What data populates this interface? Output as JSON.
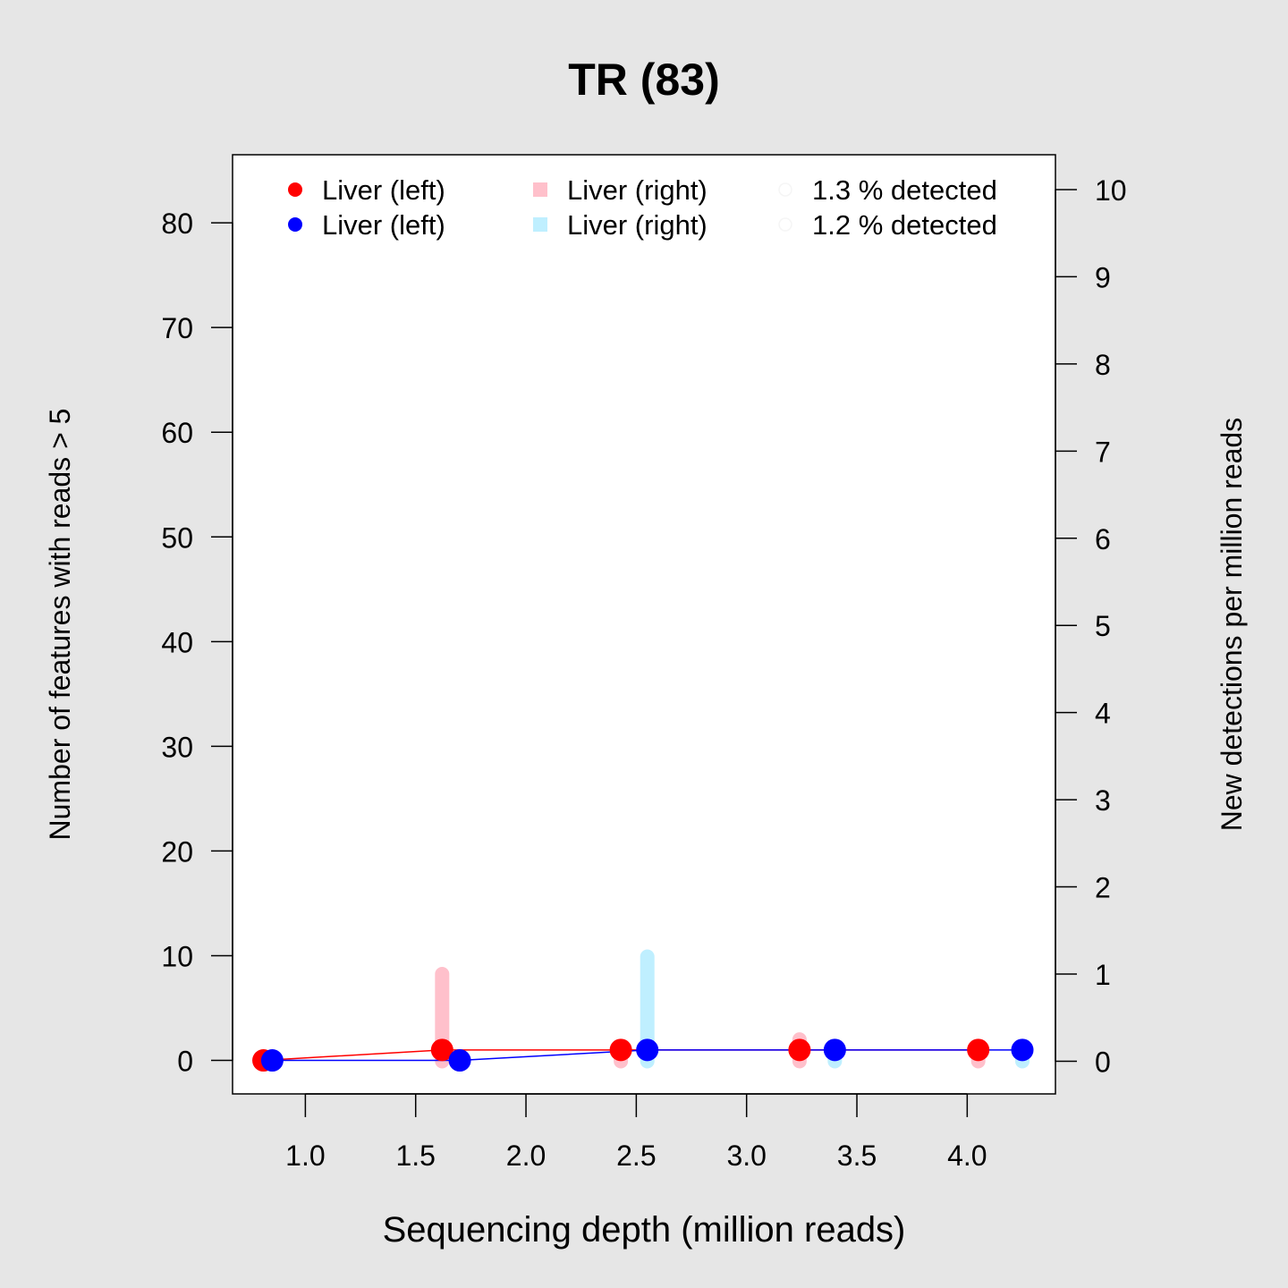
{
  "chart_data": {
    "type": "line",
    "title": "TR (83)",
    "xlabel": "Sequencing depth (million reads)",
    "ylabel": "Number of features with reads > 5",
    "y2label": "New detections per million reads",
    "xlim": [
      0.67,
      4.4
    ],
    "ylim": [
      -3.2,
      86.5
    ],
    "y2lim": [
      -0.375,
      10.4
    ],
    "x_ticks": [
      "1.0",
      "1.5",
      "2.0",
      "2.5",
      "3.0",
      "3.5",
      "4.0"
    ],
    "y_ticks": [
      "0",
      "10",
      "20",
      "30",
      "40",
      "50",
      "60",
      "70",
      "80"
    ],
    "y2_ticks": [
      "0",
      "1",
      "2",
      "3",
      "4",
      "5",
      "6",
      "7",
      "8",
      "9",
      "10"
    ],
    "grid": false,
    "legend_position": "top",
    "legend": [
      {
        "label": "Liver (left)",
        "color": "#ff0000",
        "symbol": "circle"
      },
      {
        "label": "Liver (left)",
        "color": "#0000ff",
        "symbol": "circle"
      },
      {
        "label": "Liver (right)",
        "color": "#ffc0cb",
        "symbol": "square"
      },
      {
        "label": "Liver (right)",
        "color": "#bfefff",
        "symbol": "square"
      },
      {
        "label": "1.3 % detected",
        "color": "#f5f5f5",
        "symbol": "open-circle"
      },
      {
        "label": "1.2 % detected",
        "color": "#f5f5f5",
        "symbol": "open-circle"
      }
    ],
    "series": [
      {
        "color": "#ff0000",
        "bar_color": "#ffc0cb",
        "x": [
          0.81,
          1.62,
          2.43,
          3.24,
          4.05
        ],
        "y": [
          0,
          1,
          1,
          1,
          1
        ],
        "new_detections_per_million": [
          0,
          1.0,
          0.05,
          0.25,
          0.05
        ]
      },
      {
        "color": "#0000ff",
        "bar_color": "#bfefff",
        "x": [
          0.85,
          1.7,
          2.55,
          3.4,
          4.25
        ],
        "y": [
          0,
          0,
          1,
          1,
          1
        ],
        "new_detections_per_million": [
          0,
          0,
          1.2,
          0.05,
          0.05
        ]
      }
    ]
  }
}
